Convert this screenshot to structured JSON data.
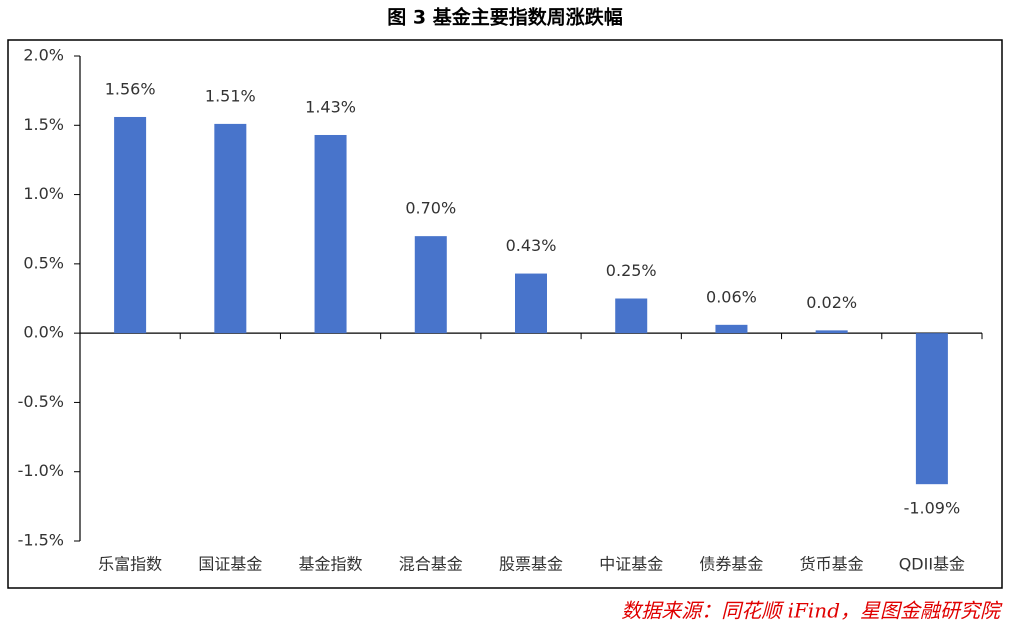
{
  "chart_data": {
    "type": "bar",
    "title": "图 3 基金主要指数周涨跌幅",
    "categories": [
      "乐富指数",
      "国证基金",
      "基金指数",
      "混合基金",
      "股票基金",
      "中证基金",
      "债券基金",
      "货币基金",
      "QDII基金"
    ],
    "values": [
      1.56,
      1.51,
      1.43,
      0.7,
      0.43,
      0.25,
      0.06,
      0.02,
      -1.09
    ],
    "value_labels": [
      "1.56%",
      "1.51%",
      "1.43%",
      "0.70%",
      "0.43%",
      "0.25%",
      "0.06%",
      "0.02%",
      "-1.09%"
    ],
    "color": "#4874cb",
    "ylim": [
      -1.5,
      2.0
    ],
    "yticks": [
      {
        "value": -1.5,
        "label": "-1.5%"
      },
      {
        "value": -1.0,
        "label": "-1.0%"
      },
      {
        "value": -0.5,
        "label": "-0.5%"
      },
      {
        "value": 0.0,
        "label": "0.0%"
      },
      {
        "value": 0.5,
        "label": "0.5%"
      },
      {
        "value": 1.0,
        "label": "1.0%"
      },
      {
        "value": 1.5,
        "label": "1.5%"
      },
      {
        "value": 2.0,
        "label": "2.0%"
      }
    ],
    "grid": false,
    "source": "数据来源：同花顺 iFind，星图金融研究院"
  }
}
